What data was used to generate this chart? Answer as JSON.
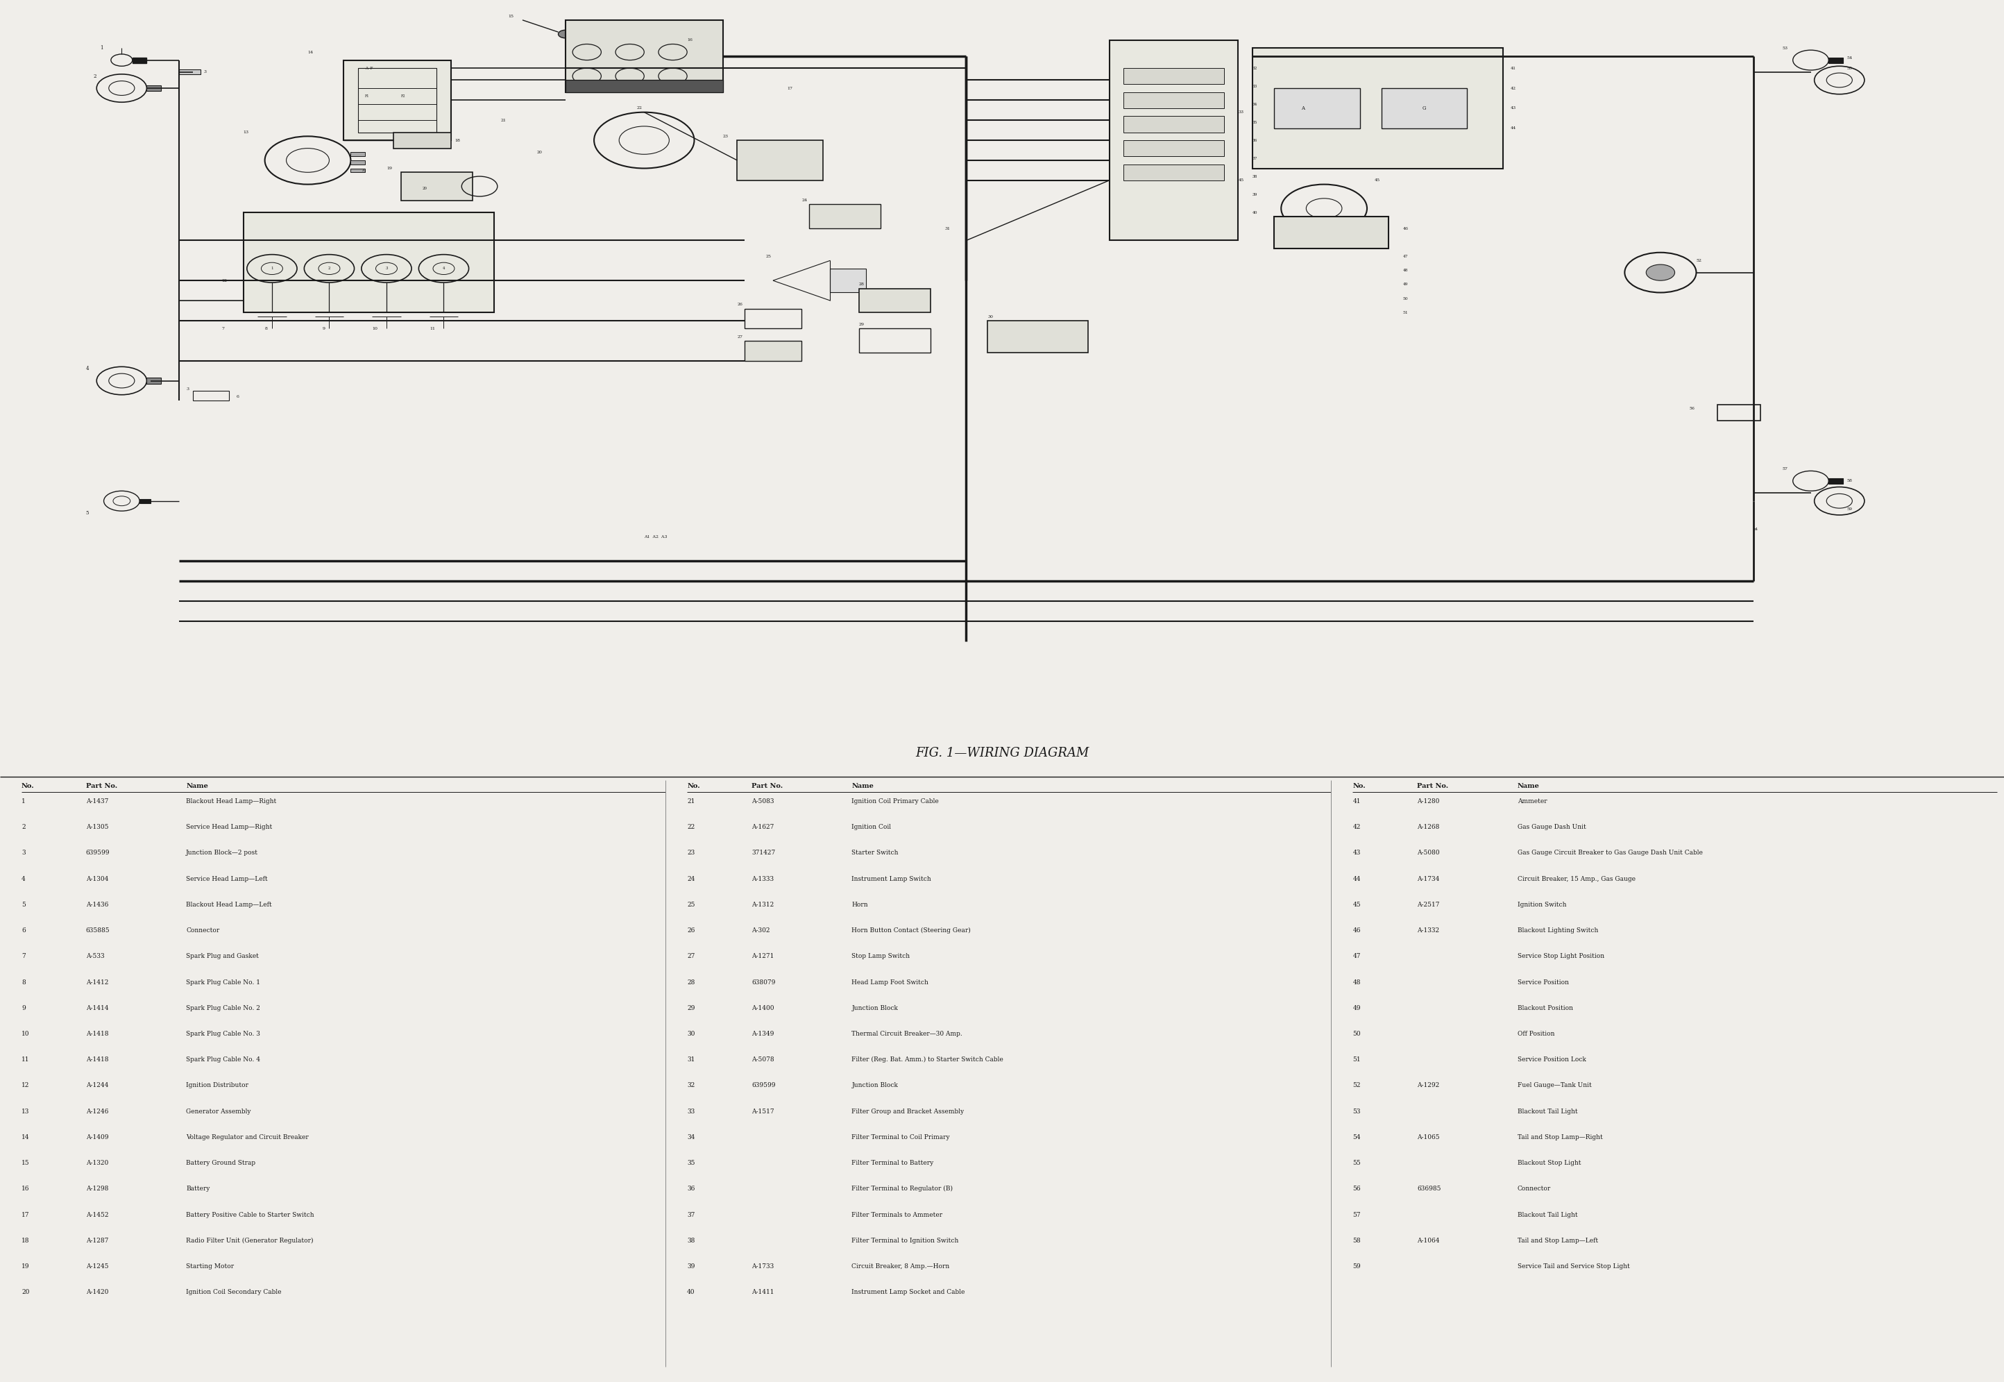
{
  "title": "FIG. 1—WIRING DIAGRAM",
  "bg_color": "#f0eeea",
  "line_color": "#1a1a1a",
  "text_color": "#1a1a1a",
  "fig_width": 28.88,
  "fig_height": 19.91,
  "parts_table": {
    "col1": [
      [
        "1",
        "A-1437",
        "Blackout Head Lamp—Right"
      ],
      [
        "2",
        "A-1305",
        "Service Head Lamp—Right"
      ],
      [
        "3",
        "639599",
        "Junction Block—2 post"
      ],
      [
        "4",
        "A-1304",
        "Service Head Lamp—Left"
      ],
      [
        "5",
        "A-1436",
        "Blackout Head Lamp—Left"
      ],
      [
        "6",
        "635885",
        "Connector"
      ],
      [
        "7",
        "A-533",
        "Spark Plug and Gasket"
      ],
      [
        "8",
        "A-1412",
        "Spark Plug Cable No. 1"
      ],
      [
        "9",
        "A-1414",
        "Spark Plug Cable No. 2"
      ],
      [
        "10",
        "A-1418",
        "Spark Plug Cable No. 3"
      ],
      [
        "11",
        "A-1418",
        "Spark Plug Cable No. 4"
      ],
      [
        "12",
        "A-1244",
        "Ignition Distributor"
      ],
      [
        "13",
        "A-1246",
        "Generator Assembly"
      ],
      [
        "14",
        "A-1409",
        "Voltage Regulator and Circuit Breaker"
      ],
      [
        "15",
        "A-1320",
        "Battery Ground Strap"
      ],
      [
        "16",
        "A-1298",
        "Battery"
      ],
      [
        "17",
        "A-1452",
        "Battery Positive Cable to Starter Switch"
      ],
      [
        "18",
        "A-1287",
        "Radio Filter Unit (Generator Regulator)"
      ],
      [
        "19",
        "A-1245",
        "Starting Motor"
      ],
      [
        "20",
        "A-1420",
        "Ignition Coil Secondary Cable"
      ]
    ],
    "col2": [
      [
        "21",
        "A-5083",
        "Ignition Coil Primary Cable"
      ],
      [
        "22",
        "A-1627",
        "Ignition Coil"
      ],
      [
        "23",
        "371427",
        "Starter Switch"
      ],
      [
        "24",
        "A-1333",
        "Instrument Lamp Switch"
      ],
      [
        "25",
        "A-1312",
        "Horn"
      ],
      [
        "26",
        "A-302",
        "Horn Button Contact (Steering Gear)"
      ],
      [
        "27",
        "A-1271",
        "Stop Lamp Switch"
      ],
      [
        "28",
        "638079",
        "Head Lamp Foot Switch"
      ],
      [
        "29",
        "A-1400",
        "Junction Block"
      ],
      [
        "30",
        "A-1349",
        "Thermal Circuit Breaker—30 Amp."
      ],
      [
        "31",
        "A-5078",
        "Filter (Reg. Bat. Amm.) to Starter Switch Cable"
      ],
      [
        "32",
        "639599",
        "Junction Block"
      ],
      [
        "33",
        "A-1517",
        "Filter Group and Bracket Assembly"
      ],
      [
        "34",
        "",
        "Filter Terminal to Coil Primary"
      ],
      [
        "35",
        "",
        "Filter Terminal to Battery"
      ],
      [
        "36",
        "",
        "Filter Terminal to Regulator (B)"
      ],
      [
        "37",
        "",
        "Filter Terminals to Ammeter"
      ],
      [
        "38",
        "",
        "Filter Terminal to Ignition Switch"
      ],
      [
        "39",
        "A-1733",
        "Circuit Breaker, 8 Amp.—Horn"
      ],
      [
        "40",
        "A-1411",
        "Instrument Lamp Socket and Cable"
      ]
    ],
    "col3": [
      [
        "41",
        "A-1280",
        "Ammeter"
      ],
      [
        "42",
        "A-1268",
        "Gas Gauge Dash Unit"
      ],
      [
        "43",
        "A-5080",
        "Gas Gauge Circuit Breaker to Gas Gauge Dash Unit Cable"
      ],
      [
        "44",
        "A-1734",
        "Circuit Breaker, 15 Amp., Gas Gauge"
      ],
      [
        "45",
        "A-2517",
        "Ignition Switch"
      ],
      [
        "46",
        "A-1332",
        "Blackout Lighting Switch"
      ],
      [
        "47",
        "",
        "Service Stop Light Position"
      ],
      [
        "48",
        "",
        "Service Position"
      ],
      [
        "49",
        "",
        "Blackout Position"
      ],
      [
        "50",
        "",
        "Off Position"
      ],
      [
        "51",
        "",
        "Service Position Lock"
      ],
      [
        "52",
        "A-1292",
        "Fuel Gauge—Tank Unit"
      ],
      [
        "53",
        "",
        "Blackout Tail Light"
      ],
      [
        "54",
        "A-1065",
        "Tail and Stop Lamp—Right"
      ],
      [
        "55",
        "",
        "Blackout Stop Light"
      ],
      [
        "56",
        "636985",
        "Connector"
      ],
      [
        "57",
        "",
        "Blackout Tail Light"
      ],
      [
        "58",
        "A-1064",
        "Tail and Stop Lamp—Left"
      ],
      [
        "59",
        "",
        "Service Tail and Service Stop Light"
      ]
    ]
  }
}
